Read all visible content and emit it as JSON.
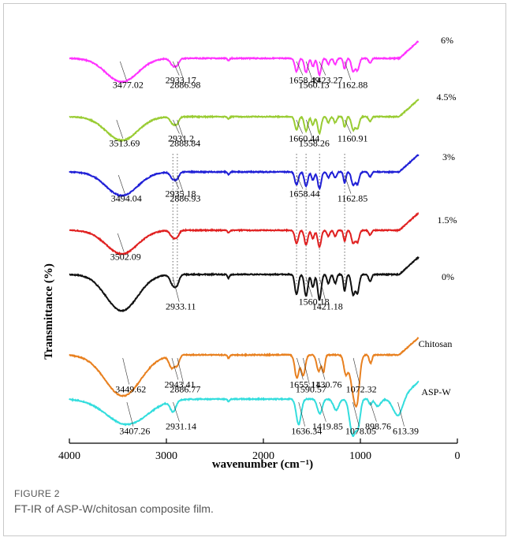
{
  "figure": {
    "number": "FIGURE 2",
    "caption": "FT-IR of ASP-W/chitosan composite film."
  },
  "chart_data": {
    "type": "line",
    "xlabel": "wavenumber (cm⁻¹)",
    "ylabel": "Transmittance (%)",
    "xlim": [
      4000,
      0
    ],
    "x_ticks": [
      "4000",
      "3000",
      "2000",
      "1000",
      "0"
    ],
    "grid": false,
    "series": [
      {
        "name": "6%",
        "color": "#ff33ff",
        "peaks": [
          {
            "x": 3477.02,
            "label": "3477.02"
          },
          {
            "x": 2933.17,
            "label": "2933.17"
          },
          {
            "x": 2886.98,
            "label": "2886.98"
          },
          {
            "x": 1658.49,
            "label": "1658.49"
          },
          {
            "x": 1560.13,
            "label": "1560.13"
          },
          {
            "x": 1423.27,
            "label": "1423.27"
          },
          {
            "x": 1162.88,
            "label": "1162.88"
          }
        ]
      },
      {
        "name": "4.5%",
        "color": "#99cc33",
        "peaks": [
          {
            "x": 3513.69,
            "label": "3513.69"
          },
          {
            "x": 2931.2,
            "label": "2931.2"
          },
          {
            "x": 2888.84,
            "label": "2888.84"
          },
          {
            "x": 1660.44,
            "label": "1660.44"
          },
          {
            "x": 1558.26,
            "label": "1558.26"
          },
          {
            "x": 1160.91,
            "label": "1160.91"
          }
        ]
      },
      {
        "name": "3%",
        "color": "#1f1fd6",
        "peaks": [
          {
            "x": 3494.04,
            "label": "3494.04"
          },
          {
            "x": 2935.18,
            "label": "2935.18"
          },
          {
            "x": 2886.93,
            "label": "2886.93"
          },
          {
            "x": 1658.44,
            "label": "1658.44"
          },
          {
            "x": 1162.85,
            "label": "1162.85"
          }
        ]
      },
      {
        "name": "1.5%",
        "color": "#e02020",
        "peaks": [
          {
            "x": 3502.09,
            "label": "3502.09"
          }
        ]
      },
      {
        "name": "0%",
        "color": "#111111",
        "peaks": [
          {
            "x": 2933.11,
            "label": "2933.11"
          },
          {
            "x": 1560.18,
            "label": "1560.18"
          },
          {
            "x": 1421.18,
            "label": "1421.18"
          }
        ]
      },
      {
        "name": "Chitosan",
        "color": "#e8801f",
        "peaks": [
          {
            "x": 3449.62,
            "label": "3449.62"
          },
          {
            "x": 2943.41,
            "label": "2943.41"
          },
          {
            "x": 2886.77,
            "label": "2886.77"
          },
          {
            "x": 1655.11,
            "label": "1655.11"
          },
          {
            "x": 1590.57,
            "label": "1590.57"
          },
          {
            "x": 1430.76,
            "label": "1430.76"
          },
          {
            "x": 1072.32,
            "label": "1072.32"
          }
        ]
      },
      {
        "name": "ASP-W",
        "color": "#33dddd",
        "peaks": [
          {
            "x": 3407.26,
            "label": "3407.26"
          },
          {
            "x": 2931.14,
            "label": "2931.14"
          },
          {
            "x": 1636.34,
            "label": "1636.34"
          },
          {
            "x": 1419.85,
            "label": "1419.85"
          },
          {
            "x": 1078.05,
            "label": "1078.05"
          },
          {
            "x": 898.76,
            "label": "898.76"
          },
          {
            "x": 613.39,
            "label": "613.39"
          }
        ]
      }
    ],
    "reference_lines_x": [
      2933,
      2887,
      1658,
      1560,
      1421,
      1162
    ]
  }
}
